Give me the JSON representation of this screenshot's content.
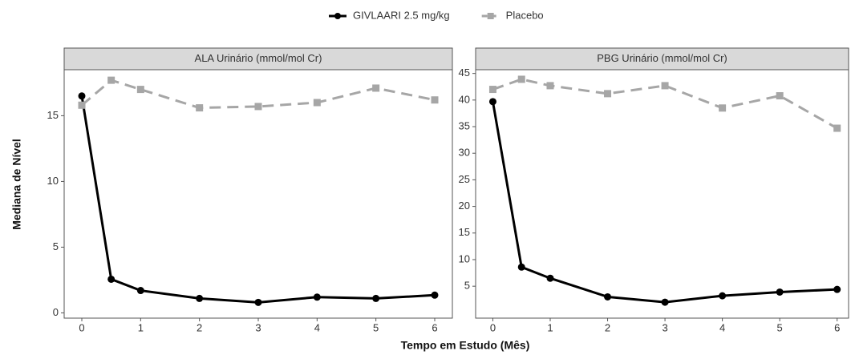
{
  "chart_data": [
    {
      "type": "line",
      "title": "ALA Urinário (mmol/mol Cr)",
      "y_label": "Mediana de Nível",
      "x_label": "Tempo em Estudo (Mês)",
      "x": [
        0,
        0.5,
        1,
        2,
        3,
        4,
        5,
        6
      ],
      "series": [
        {
          "name": "GIVLAARI 2.5 mg/kg",
          "color": "#000000",
          "dash": false,
          "values": [
            16.5,
            2.56,
            1.7,
            1.1,
            0.8,
            1.2,
            1.1,
            1.35
          ]
        },
        {
          "name": "Placebo",
          "color": "#a6a6a6",
          "dash": true,
          "values": [
            15.8,
            17.7,
            17.0,
            15.6,
            15.7,
            16.0,
            17.1,
            16.2
          ]
        }
      ],
      "xlim": [
        -0.3,
        6.3
      ],
      "ylim": [
        -0.4,
        18.5
      ],
      "xticks": [
        0,
        1,
        2,
        3,
        4,
        5,
        6
      ],
      "yticks": [
        0,
        5,
        10,
        15
      ]
    },
    {
      "type": "line",
      "title": "PBG Urinário (mmol/mol Cr)",
      "x": [
        0,
        0.5,
        1,
        2,
        3,
        4,
        5,
        6
      ],
      "series": [
        {
          "color": "#000000",
          "dash": false,
          "values": [
            39.7,
            8.6,
            6.5,
            3.0,
            2.0,
            3.2,
            3.9,
            4.4
          ]
        },
        {
          "color": "#a6a6a6",
          "dash": true,
          "values": [
            42.0,
            43.9,
            42.7,
            41.2,
            42.7,
            38.5,
            40.8,
            34.7
          ]
        }
      ],
      "xlim": [
        -0.3,
        6.2
      ],
      "ylim": [
        -1,
        45.7
      ],
      "xticks": [
        0,
        1,
        2,
        3,
        4,
        5,
        6
      ],
      "yticks": [
        5,
        10,
        15,
        20,
        25,
        30,
        35,
        40,
        45
      ]
    }
  ]
}
